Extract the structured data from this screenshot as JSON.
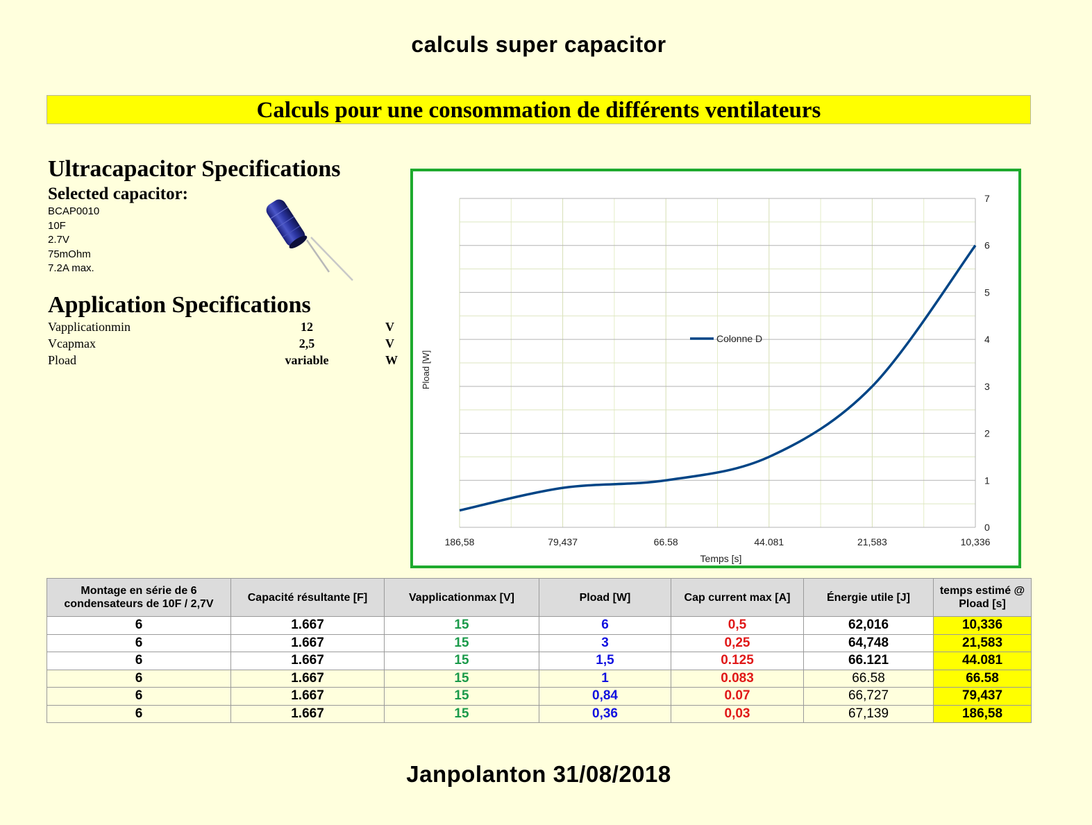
{
  "page_title": "calculs super capacitor",
  "banner": "Calculs pour une consommation de différents ventilateurs",
  "ultracap": {
    "heading": "Ultracapacitor Specifications",
    "selected_heading": "Selected capacitor:",
    "specs": [
      "BCAP0010",
      "10F",
      "2.7V",
      "75mOhm",
      "7.2A max."
    ]
  },
  "app": {
    "heading": "Application Specifications",
    "rows": [
      {
        "label": "Vapplicationmin",
        "value": "12",
        "unit": "V"
      },
      {
        "label": "Vcapmax",
        "value": "2,5",
        "unit": "V"
      },
      {
        "label": "Pload",
        "value": "variable",
        "unit": "W"
      }
    ]
  },
  "chart_data": {
    "type": "line",
    "categories": [
      "186,58",
      "79,437",
      "66.58",
      "44.081",
      "21,583",
      "10,336"
    ],
    "series": [
      {
        "name": "Colonne D",
        "values": [
          0.36,
          0.84,
          1,
          1.5,
          3,
          6
        ],
        "color": "#004586"
      }
    ],
    "xlabel": "Temps [s]",
    "ylabel": "Pload [W]",
    "ylim": [
      0,
      7
    ],
    "yticks": [
      "0",
      "1",
      "2",
      "3",
      "4",
      "5",
      "6",
      "7"
    ],
    "y_axis_side": "right",
    "grid": true,
    "legend": "center"
  },
  "table": {
    "headers": [
      "Montage en série de 6 condensateurs de 10F / 2,7V",
      "Capacité résultante [F]",
      "Vapplicationmax [V]",
      "Pload [W]",
      "Cap current max [A]",
      "Énergie utile [J]",
      "temps estimé @ Pload [s]"
    ],
    "rows": [
      [
        "6",
        "1.667",
        "15",
        "6",
        "0,5",
        "62,016",
        "10,336"
      ],
      [
        "6",
        "1.667",
        "15",
        "3",
        "0,25",
        "64,748",
        "21,583"
      ],
      [
        "6",
        "1.667",
        "15",
        "1,5",
        "0.125",
        "66.121",
        "44.081"
      ],
      [
        "6",
        "1.667",
        "15",
        "1",
        "0.083",
        "66.58",
        "66.58"
      ],
      [
        "6",
        "1.667",
        "15",
        "0,84",
        "0.07",
        "66,727",
        "79,437"
      ],
      [
        "6",
        "1.667",
        "15",
        "0,36",
        "0,03",
        "67,139",
        "186,58"
      ]
    ]
  },
  "footer": "Janpolanton 31/08/2018"
}
